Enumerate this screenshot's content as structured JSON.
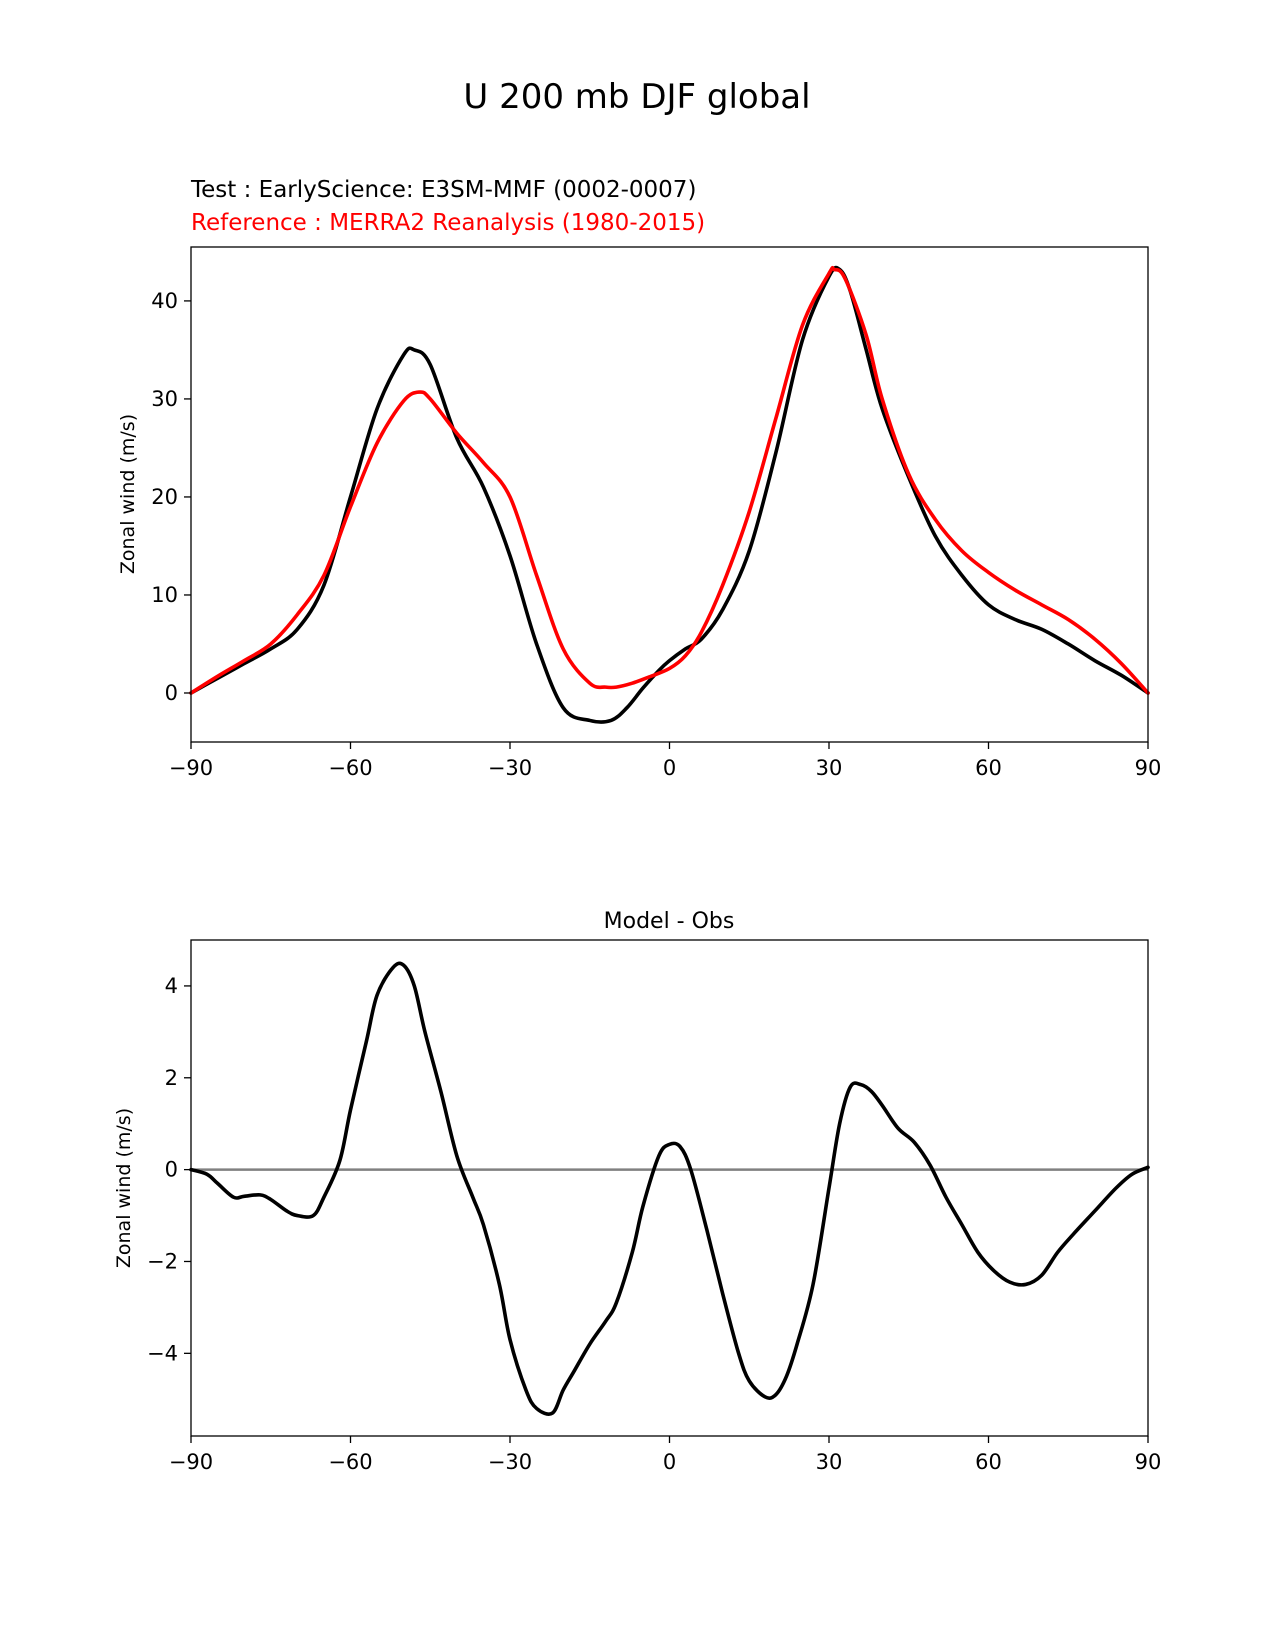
{
  "figure": {
    "title": "U 200 mb DJF global"
  },
  "chart_data": [
    {
      "type": "line",
      "title_test": "Test : EarlyScience: E3SM-MMF (0002-0007)",
      "title_reference": "Reference : MERRA2 Reanalysis (1980-2015)",
      "xlabel": "",
      "ylabel": "Zonal wind (m/s)",
      "xlim": [
        -90,
        90
      ],
      "ylim": [
        -5,
        45.5
      ],
      "xticks": [
        -90,
        -60,
        -30,
        0,
        30,
        60,
        90
      ],
      "xtick_labels": [
        "−90",
        "−60",
        "−30",
        "0",
        "30",
        "60",
        "90"
      ],
      "yticks": [
        0,
        10,
        20,
        30,
        40
      ],
      "ytick_labels": [
        "0",
        "10",
        "20",
        "30",
        "40"
      ],
      "grid": false,
      "colors": {
        "test": "#000000",
        "reference": "#ff0000"
      },
      "series": [
        {
          "key": "test",
          "x": [
            -90,
            -85,
            -80,
            -75,
            -70,
            -65,
            -60,
            -55,
            -50,
            -48,
            -45,
            -40,
            -35,
            -30,
            -25,
            -20,
            -15,
            -11,
            -8,
            -5,
            -2,
            0,
            3,
            6,
            10,
            15,
            20,
            25,
            30,
            32,
            34,
            37,
            40,
            45,
            50,
            55,
            60,
            65,
            70,
            75,
            80,
            85,
            90
          ],
          "y": [
            0,
            1.5,
            3.0,
            4.5,
            6.5,
            11,
            20,
            29,
            34.5,
            35,
            33.5,
            26,
            21,
            14,
            5,
            -1.5,
            -2.8,
            -2.8,
            -1.5,
            0.5,
            2.3,
            3.3,
            4.5,
            5.5,
            8.5,
            14.5,
            24.5,
            36,
            42.5,
            43.2,
            41,
            35,
            29,
            22,
            16,
            12,
            9,
            7.5,
            6.5,
            5,
            3.3,
            1.8,
            0
          ]
        },
        {
          "key": "reference",
          "x": [
            -90,
            -85,
            -80,
            -75,
            -70,
            -65,
            -60,
            -55,
            -50,
            -47,
            -45,
            -40,
            -35,
            -30,
            -25,
            -20,
            -15,
            -12,
            -10,
            -7,
            -4,
            0,
            3,
            6,
            10,
            15,
            20,
            25,
            30,
            31,
            33,
            37,
            40,
            45,
            50,
            55,
            60,
            65,
            70,
            75,
            80,
            85,
            90
          ],
          "y": [
            0,
            1.7,
            3.3,
            5,
            8,
            12,
            19,
            25.5,
            29.8,
            30.7,
            30,
            26.5,
            23.5,
            20,
            12,
            4.5,
            1,
            0.6,
            0.6,
            1,
            1.6,
            2.5,
            3.8,
            6.2,
            11,
            18.5,
            28,
            37.5,
            42.8,
            43.2,
            42.3,
            36.5,
            30,
            22.3,
            17.7,
            14.5,
            12.3,
            10.5,
            9,
            7.5,
            5.5,
            3,
            0
          ]
        }
      ]
    },
    {
      "type": "line",
      "title": "Model - Obs",
      "xlabel": "",
      "ylabel": "Zonal wind (m/s)",
      "xlim": [
        -90,
        90
      ],
      "ylim": [
        -5.8,
        5.0
      ],
      "xticks": [
        -90,
        -60,
        -30,
        0,
        30,
        60,
        90
      ],
      "xtick_labels": [
        "−90",
        "−60",
        "−30",
        "0",
        "30",
        "60",
        "90"
      ],
      "yticks": [
        -4,
        -2,
        0,
        2,
        4
      ],
      "ytick_labels": [
        "−4",
        "−2",
        "0",
        "2",
        "4"
      ],
      "grid": false,
      "colors": {
        "difference": "#000000",
        "zero_line": "#808080"
      },
      "zero_line": 0,
      "series": [
        {
          "key": "difference",
          "x": [
            -90,
            -87,
            -85,
            -82,
            -80,
            -77,
            -75,
            -72,
            -70,
            -67,
            -65,
            -62,
            -60,
            -57,
            -55,
            -52,
            -50,
            -48,
            -46,
            -43,
            -40,
            -37,
            -35,
            -32,
            -30,
            -27,
            -25,
            -22,
            -20,
            -18,
            -15,
            -12,
            -10,
            -7,
            -5,
            -2,
            0,
            2,
            4,
            7,
            10,
            13,
            15,
            18,
            20,
            22,
            24,
            27,
            30,
            32,
            34,
            36,
            38,
            40,
            43,
            46,
            49,
            52,
            55,
            58,
            61,
            64,
            67,
            70,
            73,
            76,
            80,
            84,
            87,
            90
          ],
          "y": [
            0,
            -0.1,
            -0.3,
            -0.6,
            -0.58,
            -0.55,
            -0.65,
            -0.9,
            -1.0,
            -1.0,
            -0.6,
            0.2,
            1.3,
            2.8,
            3.8,
            4.4,
            4.45,
            4.0,
            3.0,
            1.7,
            0.3,
            -0.6,
            -1.2,
            -2.5,
            -3.7,
            -4.8,
            -5.2,
            -5.3,
            -4.8,
            -4.4,
            -3.8,
            -3.3,
            -2.9,
            -1.8,
            -0.8,
            0.3,
            0.55,
            0.5,
            0.0,
            -1.3,
            -2.7,
            -4.0,
            -4.6,
            -4.95,
            -4.9,
            -4.5,
            -3.8,
            -2.5,
            -0.4,
            1.0,
            1.8,
            1.85,
            1.7,
            1.4,
            0.9,
            0.6,
            0.1,
            -0.6,
            -1.2,
            -1.8,
            -2.2,
            -2.45,
            -2.5,
            -2.3,
            -1.8,
            -1.4,
            -0.9,
            -0.4,
            -0.1,
            0.05
          ]
        }
      ]
    }
  ]
}
